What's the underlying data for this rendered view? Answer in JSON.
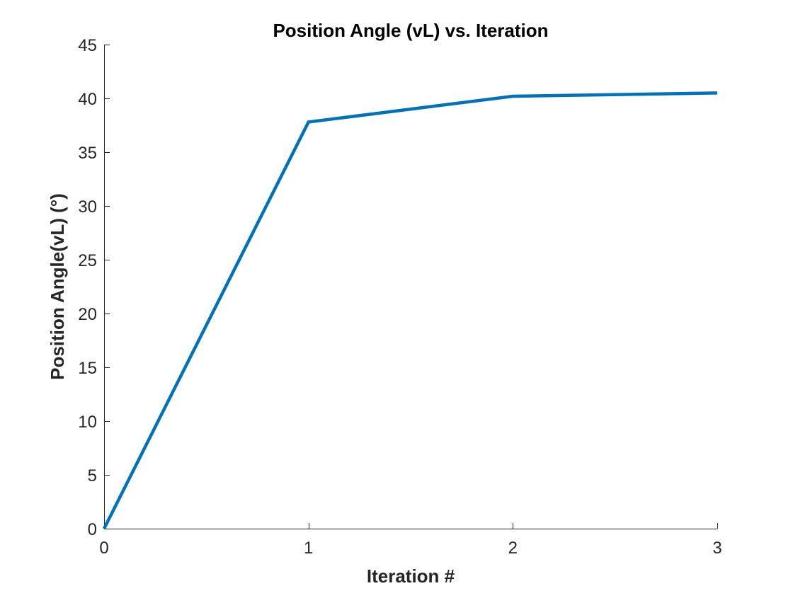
{
  "chart_data": {
    "type": "line",
    "title": "Position Angle (vL) vs. Iteration",
    "xlabel": "Iteration #",
    "ylabel": "Position Angle(vL) (°)",
    "xlim": [
      0,
      3
    ],
    "ylim": [
      0,
      45
    ],
    "xticks": [
      0,
      1,
      2,
      3
    ],
    "yticks": [
      0,
      5,
      10,
      15,
      20,
      25,
      30,
      35,
      40,
      45
    ],
    "grid": false,
    "series": [
      {
        "x": [
          0,
          1,
          2,
          3
        ],
        "values": [
          0,
          37.8,
          40.2,
          40.5
        ],
        "color": "#0072BD"
      }
    ]
  }
}
